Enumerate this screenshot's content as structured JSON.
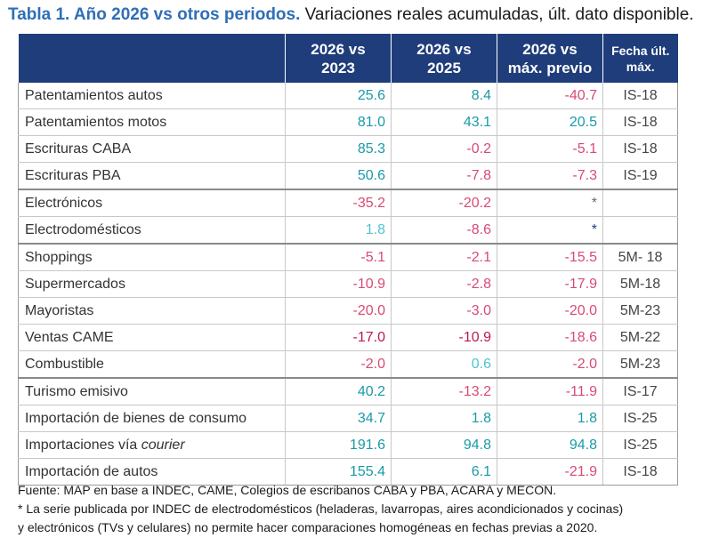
{
  "title": {
    "lead": "Tabla 1. Año 2026 vs otros periodos.",
    "rest": " Variaciones reales acumuladas, últ. dato disponible."
  },
  "headers": {
    "c1": [
      "2026 vs",
      "2023"
    ],
    "c2": [
      "2026 vs",
      "2025"
    ],
    "c3": [
      "2026 vs",
      "máx. previo"
    ],
    "c4": [
      "Fecha últ.",
      "máx."
    ]
  },
  "rows": [
    {
      "label": "Patentamientos autos",
      "c1": "25.6",
      "c2": "8.4",
      "c3": "-40.7",
      "date": "IS-18",
      "cls": [
        "pos",
        "pos",
        "neg"
      ],
      "group": false
    },
    {
      "label": "Patentamientos motos",
      "c1": "81.0",
      "c2": "43.1",
      "c3": "20.5",
      "date": "IS-18",
      "cls": [
        "pos",
        "pos",
        "pos"
      ],
      "group": false
    },
    {
      "label": "Escrituras CABA",
      "c1": "85.3",
      "c2": "-0.2",
      "c3": "-5.1",
      "date": "IS-18",
      "cls": [
        "pos",
        "neg",
        "neg"
      ],
      "group": false
    },
    {
      "label": "Escrituras PBA",
      "c1": "50.6",
      "c2": "-7.8",
      "c3": "-7.3",
      "date": "IS-19",
      "cls": [
        "pos",
        "neg",
        "neg"
      ],
      "group": false
    },
    {
      "label": "Electrónicos",
      "c1": "-35.2",
      "c2": "-20.2",
      "c3": "*",
      "date": "",
      "cls": [
        "neg",
        "neg",
        "star"
      ],
      "group": true
    },
    {
      "label": "Electrodomésticos",
      "c1": "1.8",
      "c2": "-8.6",
      "c3": "*",
      "date": "",
      "cls": [
        "posl",
        "neg",
        "stard"
      ],
      "group": false
    },
    {
      "label": "Shoppings",
      "c1": "-5.1",
      "c2": "-2.1",
      "c3": "-15.5",
      "date": "5M- 18",
      "cls": [
        "neg",
        "neg",
        "neg"
      ],
      "group": true
    },
    {
      "label": "Supermercados",
      "c1": "-10.9",
      "c2": "-2.8",
      "c3": "-17.9",
      "date": "5M-18",
      "cls": [
        "neg",
        "neg",
        "neg"
      ],
      "group": false
    },
    {
      "label": "Mayoristas",
      "c1": "-20.0",
      "c2": "-3.0",
      "c3": "-20.0",
      "date": "5M-23",
      "cls": [
        "neg",
        "neg",
        "neg"
      ],
      "group": false
    },
    {
      "label": "Ventas CAME",
      "c1": "-17.0",
      "c2": "-10.9",
      "c3": "-18.6",
      "date": "5M-22",
      "cls": [
        "negd",
        "negd",
        "neg"
      ],
      "group": false
    },
    {
      "label": "Combustible",
      "c1": "-2.0",
      "c2": "0.6",
      "c3": "-2.0",
      "date": "5M-23",
      "cls": [
        "neg",
        "posl",
        "neg"
      ],
      "group": false
    },
    {
      "label": "Turismo emisivo",
      "c1": "40.2",
      "c2": "-13.2",
      "c3": "-11.9",
      "date": "IS-17",
      "cls": [
        "pos",
        "neg",
        "neg"
      ],
      "group": true
    },
    {
      "label": "Importación de bienes de consumo",
      "c1": "34.7",
      "c2": "1.8",
      "c3": "1.8",
      "date": "IS-25",
      "cls": [
        "pos",
        "pos",
        "pos"
      ],
      "group": false
    },
    {
      "label": "Importaciones vía courier",
      "c1": "191.6",
      "c2": "94.8",
      "c3": "94.8",
      "date": "IS-25",
      "cls": [
        "pos",
        "pos",
        "pos"
      ],
      "group": false
    },
    {
      "label": "Importación de autos",
      "c1": "155.4",
      "c2": "6.1",
      "c3": "-21.9",
      "date": "IS-18",
      "cls": [
        "pos",
        "pos",
        "neg"
      ],
      "group": false
    }
  ],
  "notes": {
    "source": "Fuente: MAP en base a INDEC, CAME, Colegios de escribanos CABA y PBA, ACARA y MECON.",
    "footnote_1": "* La serie publicada por INDEC de electrodomésticos (heladeras, lavarropas, aires acondicionados y cocinas)",
    "footnote_2": "y electrónicos (TVs y celulares) no permite hacer comparaciones homogéneas en fechas previas a 2020."
  }
}
